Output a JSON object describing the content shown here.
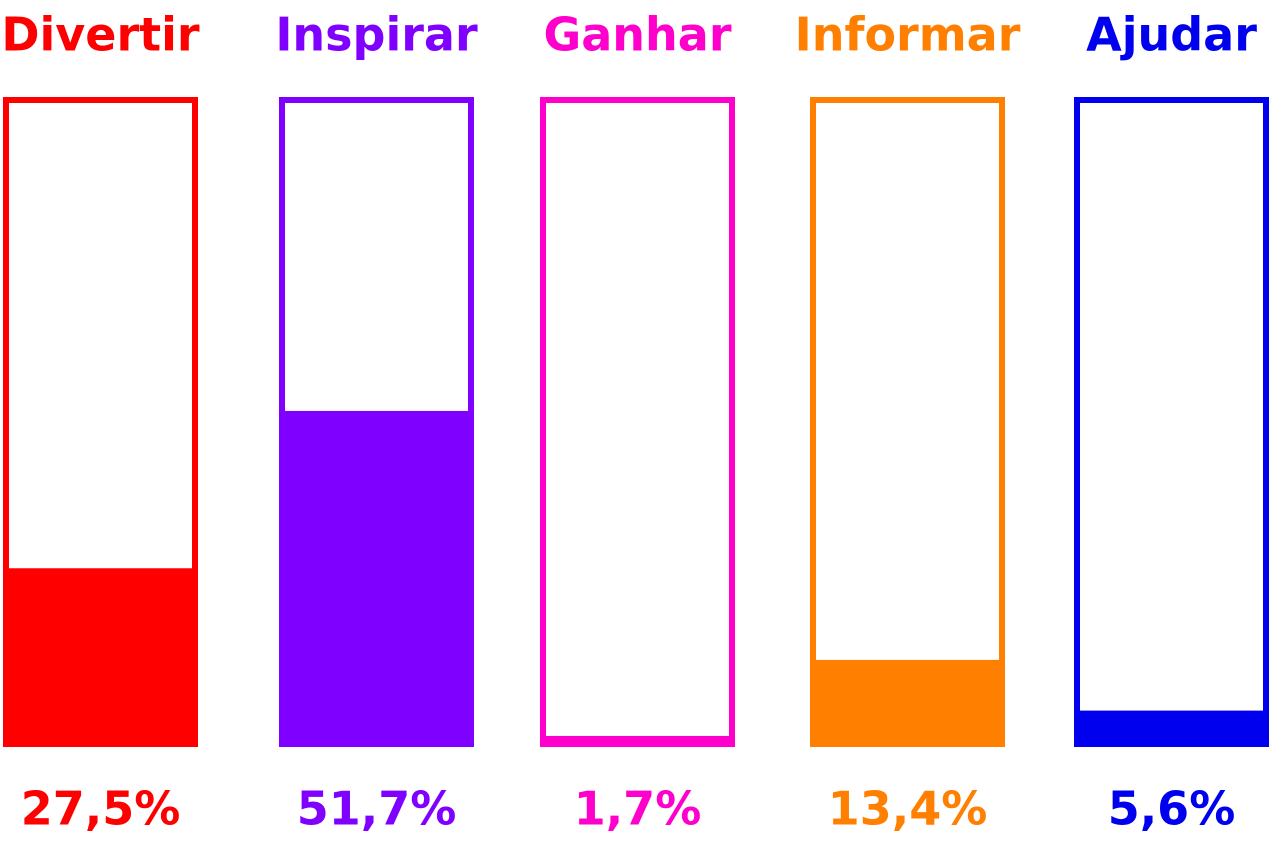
{
  "chart_data": {
    "type": "bar",
    "categories": [
      "Divertir",
      "Inspirar",
      "Ganhar",
      "Informar",
      "Ajudar"
    ],
    "values": [
      27.5,
      51.7,
      1.7,
      13.4,
      5.6
    ],
    "value_labels": [
      "27,5%",
      "51,7%",
      "1,7%",
      "13,4%",
      "5,6%"
    ],
    "colors": [
      "#ff0000",
      "#8000ff",
      "#ff00cc",
      "#ff8000",
      "#0000ee"
    ],
    "ylim": [
      0,
      100
    ]
  }
}
